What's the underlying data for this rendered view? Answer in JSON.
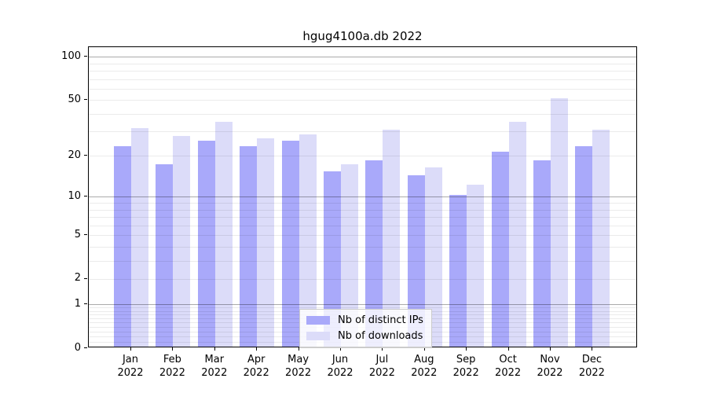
{
  "title": "hgug4100a.db 2022",
  "chart_data": {
    "type": "bar",
    "title": "hgug4100a.db 2022",
    "categories": [
      "Jan",
      "Feb",
      "Mar",
      "Apr",
      "May",
      "Jun",
      "Jul",
      "Aug",
      "Sep",
      "Oct",
      "Nov",
      "Dec"
    ],
    "year": "2022",
    "series": [
      {
        "name": "Nb of distinct IPs",
        "color": "#a9a9fa",
        "values": [
          23,
          17,
          25,
          23,
          25,
          15,
          18,
          14,
          10,
          21,
          18,
          23
        ]
      },
      {
        "name": "Nb of downloads",
        "color": "#dcdcf9",
        "values": [
          31,
          27,
          34,
          26,
          28,
          17,
          30,
          16,
          12,
          34,
          50,
          30
        ]
      }
    ],
    "xlabel": "",
    "ylabel": "",
    "y_scale": "log10(1+x)",
    "y_ticks": [
      0,
      1,
      2,
      5,
      10,
      20,
      50,
      100
    ],
    "y_minor_ticks": [
      0.1,
      0.2,
      0.3,
      0.4,
      0.5,
      0.6,
      0.7,
      0.8,
      0.9,
      3,
      4,
      6,
      7,
      8,
      9,
      30,
      40,
      60,
      70,
      80,
      90
    ],
    "y_emphasis_ticks": [
      1,
      10,
      100
    ],
    "ylim": [
      0,
      117
    ],
    "grid": true,
    "legend_position": "bottom-center"
  },
  "colors": {
    "series_ips": "#a9a9fa",
    "series_downloads": "#dcdcf9",
    "grid_minor": "rgba(0,0,0,0.08)",
    "grid_major": "rgba(0,0,0,0.33)",
    "frame": "#000000",
    "legend_border": "#cccccc"
  }
}
